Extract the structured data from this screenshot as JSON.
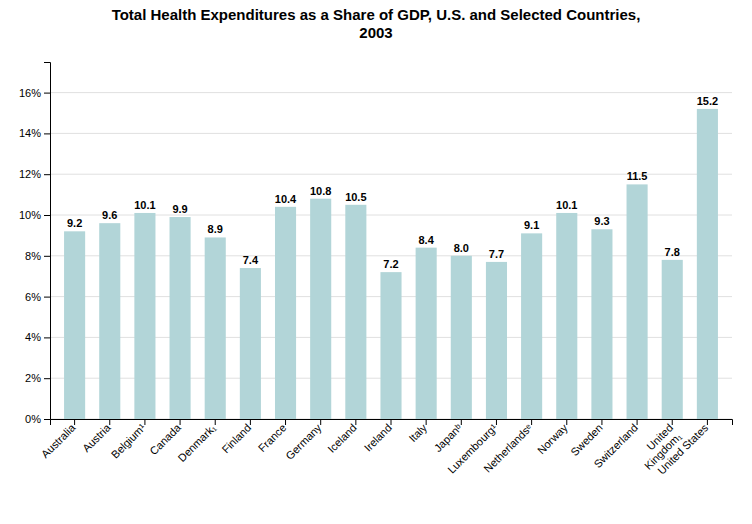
{
  "chart_data": {
    "type": "bar",
    "title": "Total Health Expenditures as a Share of GDP, U.S. and Selected Countries,\n2003",
    "categories": [
      "Australia",
      "Austria",
      "Belgium¹",
      "Canada",
      "Denmark₁",
      "Finland",
      "France",
      "Germany",
      "Iceland",
      "Ireland",
      "Italy",
      "Japanᵇ",
      "Luxembourg¹",
      "Netherlandsᵉ",
      "Norway",
      "Sweden",
      "Switzerland",
      "United\nKingdom₁",
      "United States"
    ],
    "values": [
      9.2,
      9.6,
      10.1,
      9.9,
      8.9,
      7.4,
      10.4,
      10.8,
      10.5,
      7.2,
      8.4,
      8.0,
      7.7,
      9.1,
      10.1,
      9.3,
      11.5,
      7.8,
      15.2
    ],
    "value_labels": [
      "9.2",
      "9.6",
      "10.1",
      "9.9",
      "8.9",
      "7.4",
      "10.4",
      "10.8",
      "10.5",
      "7.2",
      "8.4",
      "8.0",
      "7.7",
      "9.1",
      "10.1",
      "9.3",
      "11.5",
      "7.8",
      "15.2"
    ],
    "color": "#b2d5d8",
    "ylim": [
      0,
      17.5
    ],
    "yticks": [
      {
        "value": 0,
        "label": "0%"
      },
      {
        "value": 2,
        "label": "2%"
      },
      {
        "value": 4,
        "label": "4%"
      },
      {
        "value": 6,
        "label": "6%"
      },
      {
        "value": 8,
        "label": "8%"
      },
      {
        "value": 10,
        "label": "10%"
      },
      {
        "value": 12,
        "label": "12%"
      },
      {
        "value": 14,
        "label": "14%"
      },
      {
        "value": 16,
        "label": "16%"
      }
    ],
    "grid": true,
    "data_labels": true
  }
}
